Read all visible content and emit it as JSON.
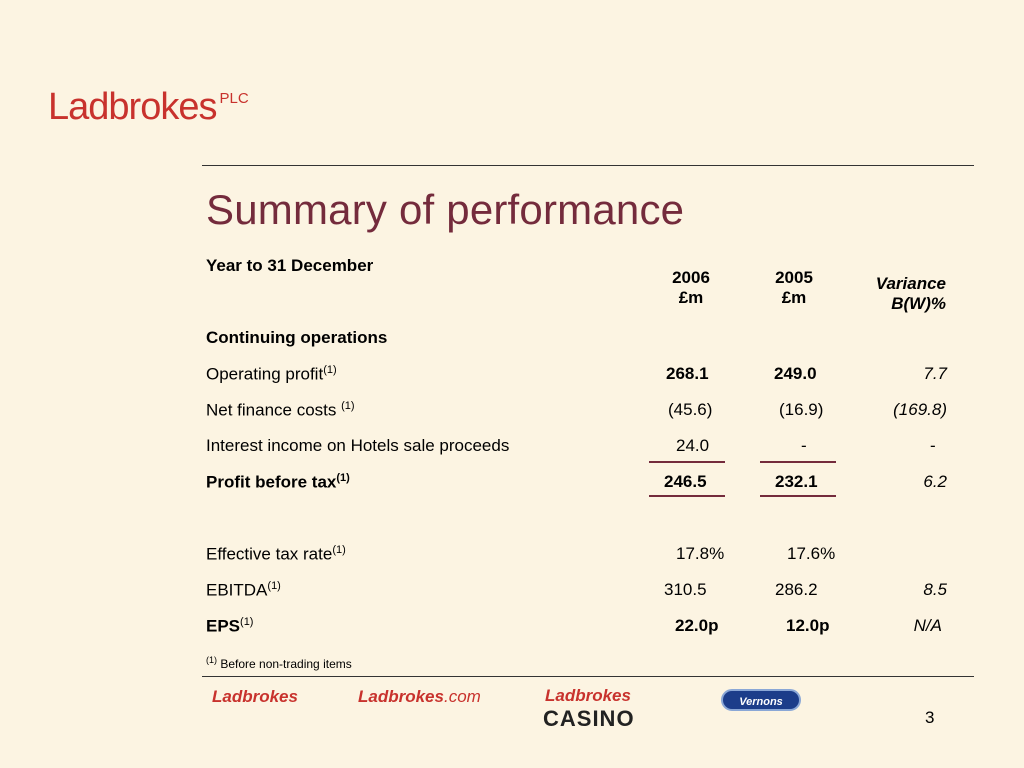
{
  "header": {
    "logo_text": "Ladbrokes",
    "logo_suffix": "PLC"
  },
  "slide": {
    "title": "Summary of performance",
    "page_number": "3"
  },
  "table": {
    "period_label": "Year to 31 December",
    "col_2006": {
      "year": "2006",
      "unit": "£m"
    },
    "col_2005": {
      "year": "2005",
      "unit": "£m"
    },
    "col_var": {
      "line1": "Variance",
      "line2": "B(W)%"
    },
    "section_label": "Continuing operations",
    "rows": [
      {
        "label": "Operating profit",
        "note": "(1)",
        "v2006": "268.1",
        "v2005": "249.0",
        "var": "7.7"
      },
      {
        "label": "Net finance costs ",
        "note": "(1)",
        "v2006": "(45.6)",
        "v2005": "(16.9)",
        "var": "(169.8)"
      },
      {
        "label": "Interest income on Hotels sale proceeds",
        "note": "",
        "v2006": "24.0",
        "v2005": "-",
        "var": "-"
      },
      {
        "label": "Profit before tax",
        "note": "(1)",
        "v2006": "246.5",
        "v2005": "232.1",
        "var": "6.2"
      },
      {
        "label": "Effective tax rate",
        "note": "(1)",
        "v2006": "17.8%",
        "v2005": "17.6%",
        "var": ""
      },
      {
        "label": "EBITDA",
        "note": "(1)",
        "v2006": "310.5",
        "v2005": "286.2",
        "var": "8.5"
      },
      {
        "label": "EPS",
        "note": "(1)",
        "v2006": "22.0p",
        "v2005": "12.0p",
        "var": "N/A"
      }
    ]
  },
  "footnote": {
    "marker": "(1)",
    "text": " Before non-trading items"
  },
  "brands": {
    "ladbrokes": "Ladbrokes",
    "ladbrokes_com_main": "Ladbrokes",
    "ladbrokes_com_suffix": ".com",
    "casino_top": "Ladbrokes",
    "casino_bottom": "CASINO",
    "vernons": "Vernons"
  },
  "colors": {
    "background": "#fcf4e2",
    "title": "#742b3c",
    "brand_red": "#c8322d"
  }
}
